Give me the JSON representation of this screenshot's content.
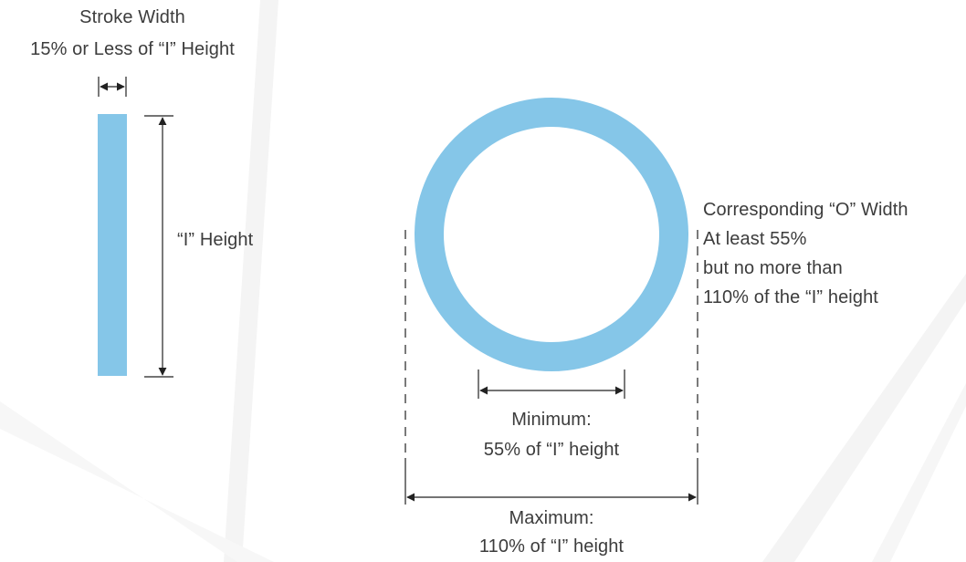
{
  "colors": {
    "shape_fill": "#85c6e8",
    "line": "#222222",
    "text": "#3c3c3c",
    "background_streak": "#f2f2f2"
  },
  "labels": {
    "stroke_width_title": "Stroke Width",
    "stroke_width_note": "15% or Less of “I” Height",
    "i_height": "“I” Height",
    "o_width_title": "Corresponding “O” Width",
    "o_width_line1": "At least 55%",
    "o_width_line2": "but no more than",
    "o_width_line3": "110% of the “I” height",
    "minimum_title": "Minimum:",
    "minimum_note": "55% of “I” height",
    "maximum_title": "Maximum:",
    "maximum_note": "110% of “I” height"
  }
}
